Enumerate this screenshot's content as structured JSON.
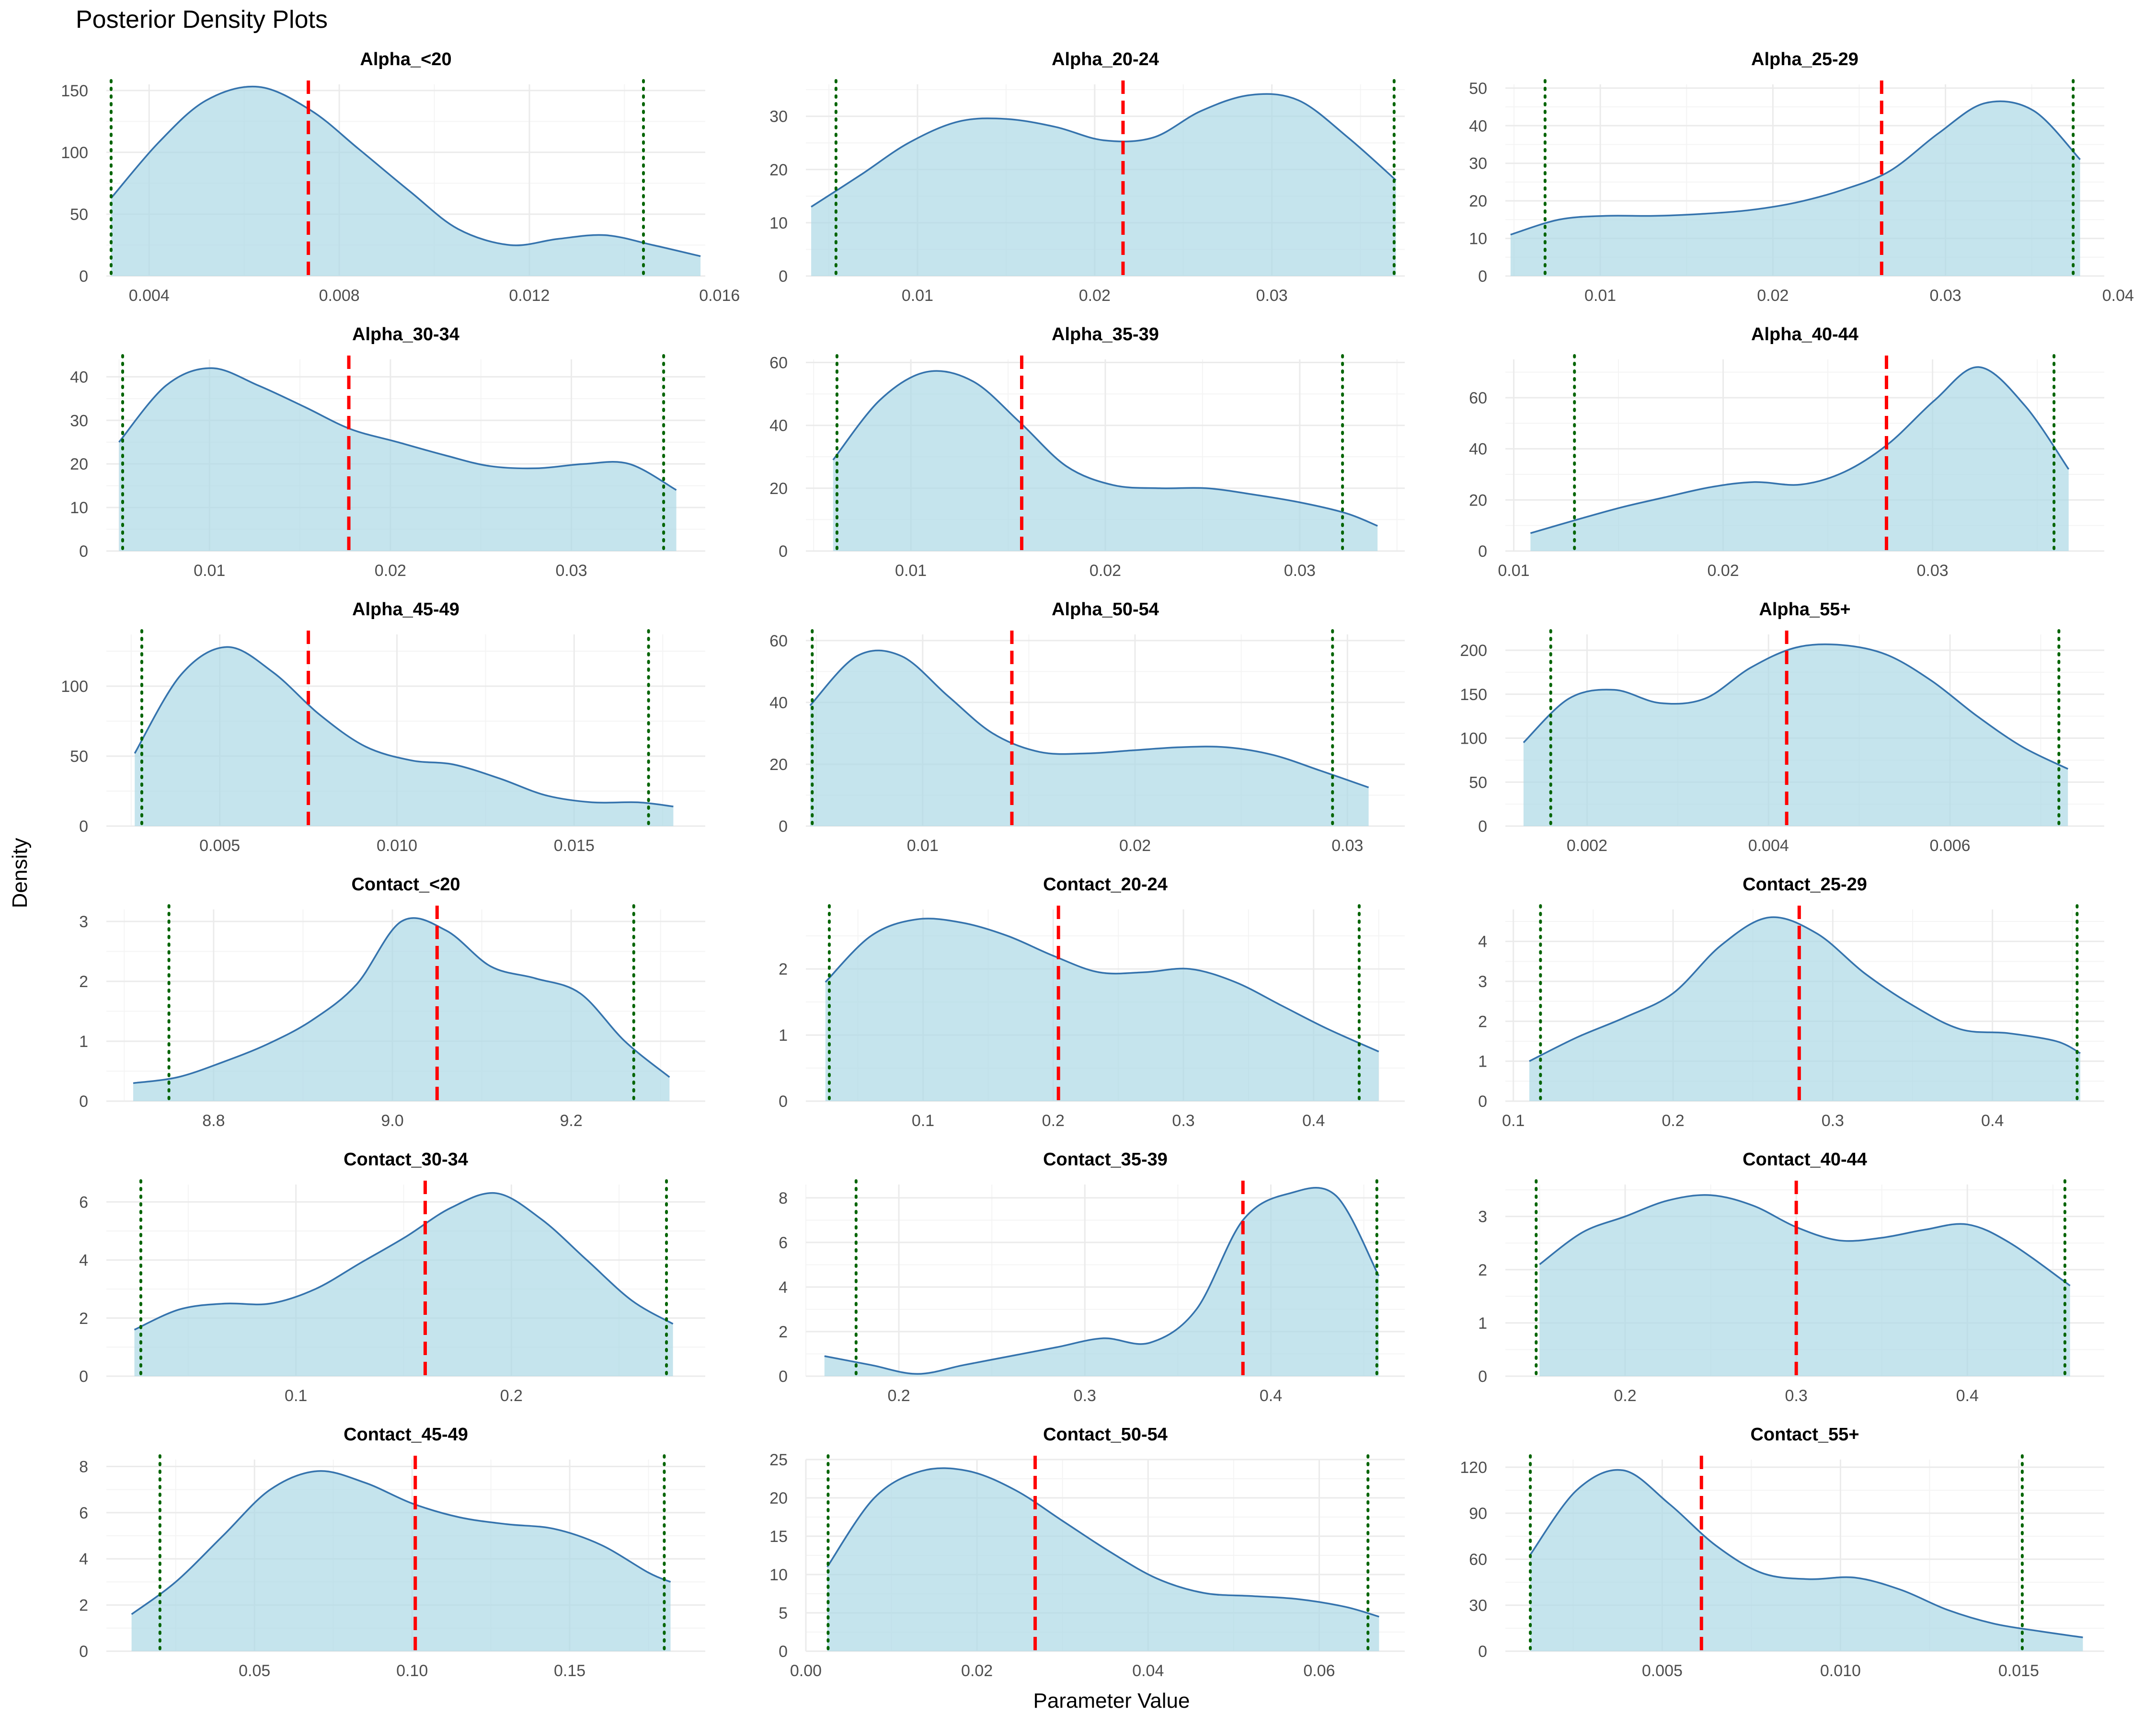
{
  "title": "Posterior Density Plots",
  "xlabel": "Parameter Value",
  "ylabel": "Density",
  "colors": {
    "fill": "#add8e6",
    "line": "#3573ad",
    "mean_line": "#ff0000",
    "ci_line": "#006400",
    "grid_major": "#ebebeb",
    "grid_minor": "#f4f4f4",
    "tick_text": "#4d4d4d"
  },
  "chart_data": [
    {
      "type": "area",
      "title": "Alpha_<20",
      "xlim": [
        0.0031,
        0.0157
      ],
      "ylim": [
        0,
        155
      ],
      "xticks": [
        0.004,
        0.008,
        0.012,
        0.016
      ],
      "xtick_labels": [
        "0.004",
        "0.008",
        "0.012",
        "0.016"
      ],
      "yticks": [
        0,
        50,
        100,
        150
      ],
      "ytick_labels": [
        "0",
        "50",
        "100",
        "150"
      ],
      "x": [
        0.0032,
        0.0042,
        0.0052,
        0.0063,
        0.0074,
        0.0084,
        0.0095,
        0.0105,
        0.0116,
        0.0126,
        0.0136,
        0.0146,
        0.0156
      ],
      "y": [
        63,
        108,
        142,
        153,
        134,
        103,
        68,
        38,
        25,
        30,
        33,
        25,
        16
      ],
      "mean": 0.00735,
      "ci": [
        0.0032,
        0.0144
      ]
    },
    {
      "type": "area",
      "title": "Alpha_20-24",
      "xlim": [
        0.0037,
        0.0375
      ],
      "ylim": [
        0,
        36
      ],
      "xticks": [
        0.01,
        0.02,
        0.03
      ],
      "xtick_labels": [
        "0.01",
        "0.02",
        "0.03"
      ],
      "yticks": [
        0,
        10,
        20,
        30
      ],
      "ytick_labels": [
        "0",
        "10",
        "20",
        "30"
      ],
      "x": [
        0.004,
        0.0068,
        0.0095,
        0.0123,
        0.015,
        0.0178,
        0.0205,
        0.0233,
        0.026,
        0.0288,
        0.0315,
        0.0343,
        0.037
      ],
      "y": [
        13,
        19,
        25,
        29,
        29.5,
        28,
        25.5,
        26,
        31,
        34,
        33,
        26,
        18
      ],
      "mean": 0.0216,
      "ci": [
        0.0054,
        0.0369
      ]
    },
    {
      "type": "area",
      "title": "Alpha_25-29",
      "xlim": [
        0.0045,
        0.0392
      ],
      "ylim": [
        0,
        51
      ],
      "xticks": [
        0.01,
        0.02,
        0.03,
        0.04
      ],
      "xtick_labels": [
        "0.01",
        "0.02",
        "0.03",
        "0.04"
      ],
      "yticks": [
        0,
        10,
        20,
        30,
        40,
        50
      ],
      "ytick_labels": [
        "0",
        "10",
        "20",
        "30",
        "40",
        "50"
      ],
      "x": [
        0.0048,
        0.0076,
        0.0103,
        0.0131,
        0.0158,
        0.0186,
        0.0213,
        0.0241,
        0.0268,
        0.0296,
        0.0323,
        0.0351,
        0.0378
      ],
      "y": [
        11,
        15,
        16,
        16,
        16.5,
        17.5,
        19.5,
        23,
        28,
        38,
        46,
        44,
        31
      ],
      "mean": 0.0263,
      "ci": [
        0.0068,
        0.0374
      ]
    },
    {
      "type": "area",
      "title": "Alpha_30-34",
      "xlim": [
        0.0043,
        0.0374
      ],
      "ylim": [
        0,
        44
      ],
      "xticks": [
        0.01,
        0.02,
        0.03
      ],
      "xtick_labels": [
        "0.01",
        "0.02",
        "0.03"
      ],
      "yticks": [
        0,
        10,
        20,
        30,
        40
      ],
      "ytick_labels": [
        "0",
        "10",
        "20",
        "30",
        "40"
      ],
      "x": [
        0.005,
        0.0076,
        0.0101,
        0.0127,
        0.0153,
        0.0178,
        0.0204,
        0.023,
        0.0255,
        0.0281,
        0.0307,
        0.0332,
        0.0358
      ],
      "y": [
        25,
        38,
        42,
        38,
        33,
        28,
        25,
        22,
        19.5,
        19,
        20,
        20,
        14
      ],
      "mean": 0.0177,
      "ci": [
        0.0052,
        0.0351
      ]
    },
    {
      "type": "area",
      "title": "Alpha_35-39",
      "xlim": [
        0.0046,
        0.0354
      ],
      "ylim": [
        0,
        61
      ],
      "xticks": [
        0.01,
        0.02,
        0.03
      ],
      "xtick_labels": [
        "0.01",
        "0.02",
        "0.03"
      ],
      "yticks": [
        0,
        20,
        40,
        60
      ],
      "ytick_labels": [
        "0",
        "20",
        "40",
        "60"
      ],
      "x": [
        0.006,
        0.0084,
        0.0108,
        0.0132,
        0.0156,
        0.018,
        0.0204,
        0.0228,
        0.0252,
        0.0276,
        0.03,
        0.0324,
        0.034
      ],
      "y": [
        29,
        48,
        57,
        54,
        41,
        27,
        21,
        20,
        20,
        18,
        15.5,
        12,
        8
      ],
      "mean": 0.0157,
      "ci": [
        0.0062,
        0.0322
      ]
    },
    {
      "type": "area",
      "title": "Alpha_40-44",
      "xlim": [
        0.0096,
        0.0382
      ],
      "ylim": [
        0,
        75
      ],
      "xticks": [
        0.01,
        0.02,
        0.03
      ],
      "xtick_labels": [
        "0.01",
        "0.02",
        "0.03"
      ],
      "yticks": [
        0,
        20,
        40,
        60
      ],
      "ytick_labels": [
        "0",
        "20",
        "40",
        "60"
      ],
      "x": [
        0.0108,
        0.0129,
        0.0151,
        0.0172,
        0.0194,
        0.0215,
        0.0237,
        0.0258,
        0.0279,
        0.0301,
        0.0322,
        0.0344,
        0.0365
      ],
      "y": [
        7,
        12,
        17,
        21,
        25,
        27,
        26,
        31,
        42,
        59,
        72,
        57,
        32
      ],
      "mean": 0.0278,
      "ci": [
        0.0129,
        0.0358
      ]
    },
    {
      "type": "area",
      "title": "Alpha_45-49",
      "xlim": [
        0.0018,
        0.0187
      ],
      "ylim": [
        0,
        137
      ],
      "xticks": [
        0.005,
        0.01,
        0.015
      ],
      "xtick_labels": [
        "0.005",
        "0.010",
        "0.015"
      ],
      "yticks": [
        0,
        50,
        100
      ],
      "ytick_labels": [
        "0",
        "50",
        "100"
      ],
      "x": [
        0.0026,
        0.0039,
        0.0052,
        0.0065,
        0.0078,
        0.0091,
        0.0104,
        0.0116,
        0.0129,
        0.0142,
        0.0155,
        0.0168,
        0.0178
      ],
      "y": [
        52,
        108,
        128,
        110,
        80,
        57,
        47,
        44,
        34,
        22,
        17,
        17,
        14
      ],
      "mean": 0.0075,
      "ci": [
        0.0028,
        0.0171
      ]
    },
    {
      "type": "area",
      "title": "Alpha_50-54",
      "xlim": [
        0.0045,
        0.0327
      ],
      "ylim": [
        0,
        62
      ],
      "xticks": [
        0.01,
        0.02,
        0.03
      ],
      "xtick_labels": [
        "0.01",
        "0.02",
        "0.03"
      ],
      "yticks": [
        0,
        20,
        40,
        60
      ],
      "ytick_labels": [
        "0",
        "20",
        "40",
        "60"
      ],
      "x": [
        0.0047,
        0.0069,
        0.009,
        0.0112,
        0.0133,
        0.0155,
        0.0177,
        0.0199,
        0.0221,
        0.0243,
        0.0265,
        0.0287,
        0.031
      ],
      "y": [
        39,
        55,
        55,
        42,
        30,
        24,
        23.5,
        24.5,
        25.5,
        25.5,
        23,
        18,
        12.5
      ],
      "mean": 0.0142,
      "ci": [
        0.0048,
        0.0293
      ]
    },
    {
      "type": "area",
      "title": "Alpha_55+",
      "xlim": [
        0.0011,
        0.0077
      ],
      "ylim": [
        0,
        218
      ],
      "xticks": [
        0.002,
        0.004,
        0.006
      ],
      "xtick_labels": [
        "0.002",
        "0.004",
        "0.006"
      ],
      "yticks": [
        0,
        50,
        100,
        150,
        200
      ],
      "ytick_labels": [
        "0",
        "50",
        "100",
        "150",
        "200"
      ],
      "x": [
        0.0013,
        0.0018,
        0.0023,
        0.0028,
        0.0033,
        0.0038,
        0.0043,
        0.0048,
        0.0053,
        0.0058,
        0.0063,
        0.0068,
        0.0073
      ],
      "y": [
        95,
        145,
        155,
        140,
        145,
        180,
        203,
        206,
        195,
        165,
        125,
        90,
        65
      ],
      "mean": 0.0042,
      "ci": [
        0.0016,
        0.0072
      ]
    },
    {
      "type": "area",
      "title": "Contact_<20",
      "xlim": [
        8.68,
        9.35
      ],
      "ylim": [
        0,
        3.2
      ],
      "xticks": [
        8.8,
        9.0,
        9.2
      ],
      "xtick_labels": [
        "8.8",
        "9.0",
        "9.2"
      ],
      "yticks": [
        0,
        1,
        2,
        3
      ],
      "ytick_labels": [
        "0",
        "1",
        "2",
        "3"
      ],
      "x": [
        8.71,
        8.76,
        8.81,
        8.86,
        8.91,
        8.96,
        9.01,
        9.06,
        9.11,
        9.16,
        9.21,
        9.26,
        9.31
      ],
      "y": [
        0.3,
        0.4,
        0.65,
        0.95,
        1.35,
        1.95,
        3.0,
        2.85,
        2.25,
        2.05,
        1.8,
        1.0,
        0.4
      ],
      "mean": 9.05,
      "ci": [
        8.75,
        9.27
      ]
    },
    {
      "type": "area",
      "title": "Contact_20-24",
      "xlim": [
        0.01,
        0.47
      ],
      "ylim": [
        0,
        2.9
      ],
      "xticks": [
        0.1,
        0.2,
        0.3,
        0.4
      ],
      "xtick_labels": [
        "0.1",
        "0.2",
        "0.3",
        "0.4"
      ],
      "yticks": [
        0,
        1,
        2
      ],
      "ytick_labels": [
        "0",
        "1",
        "2"
      ],
      "x": [
        0.025,
        0.06,
        0.095,
        0.13,
        0.165,
        0.2,
        0.235,
        0.27,
        0.305,
        0.34,
        0.375,
        0.41,
        0.45
      ],
      "y": [
        1.8,
        2.5,
        2.75,
        2.7,
        2.5,
        2.2,
        1.95,
        1.95,
        2.0,
        1.8,
        1.45,
        1.1,
        0.75
      ],
      "mean": 0.204,
      "ci": [
        0.028,
        0.435
      ]
    },
    {
      "type": "area",
      "title": "Contact_25-29",
      "xlim": [
        0.095,
        0.47
      ],
      "ylim": [
        0,
        4.8
      ],
      "xticks": [
        0.1,
        0.2,
        0.3,
        0.4
      ],
      "xtick_labels": [
        "0.1",
        "0.2",
        "0.3",
        "0.4"
      ],
      "yticks": [
        0,
        1,
        2,
        3,
        4
      ],
      "ytick_labels": [
        "0",
        "1",
        "2",
        "3",
        "4"
      ],
      "x": [
        0.11,
        0.14,
        0.17,
        0.2,
        0.23,
        0.26,
        0.29,
        0.32,
        0.35,
        0.38,
        0.41,
        0.44,
        0.455
      ],
      "y": [
        1.0,
        1.6,
        2.1,
        2.7,
        3.9,
        4.6,
        4.2,
        3.2,
        2.4,
        1.8,
        1.7,
        1.5,
        1.2
      ],
      "mean": 0.279,
      "ci": [
        0.117,
        0.453
      ]
    },
    {
      "type": "area",
      "title": "Contact_30-34",
      "xlim": [
        0.012,
        0.29
      ],
      "ylim": [
        0,
        6.6
      ],
      "xticks": [
        0.1,
        0.2
      ],
      "xtick_labels": [
        "0.1",
        "0.2"
      ],
      "yticks": [
        0,
        2,
        4,
        6
      ],
      "ytick_labels": [
        "0",
        "2",
        "4",
        "6"
      ],
      "x": [
        0.025,
        0.046,
        0.067,
        0.088,
        0.109,
        0.13,
        0.151,
        0.172,
        0.193,
        0.214,
        0.235,
        0.256,
        0.275
      ],
      "y": [
        1.6,
        2.3,
        2.5,
        2.5,
        3.0,
        3.9,
        4.8,
        5.8,
        6.3,
        5.4,
        4.0,
        2.6,
        1.8
      ],
      "mean": 0.16,
      "ci": [
        0.028,
        0.272
      ]
    },
    {
      "type": "area",
      "title": "Contact_35-39",
      "xlim": [
        0.15,
        0.472
      ],
      "ylim": [
        0,
        8.6
      ],
      "xticks": [
        0.2,
        0.3,
        0.4
      ],
      "xtick_labels": [
        "0.2",
        "0.3",
        "0.4"
      ],
      "yticks": [
        0,
        2,
        4,
        6,
        8
      ],
      "ytick_labels": [
        "0",
        "2",
        "4",
        "6",
        "8"
      ],
      "x": [
        0.16,
        0.185,
        0.21,
        0.235,
        0.26,
        0.285,
        0.31,
        0.335,
        0.36,
        0.385,
        0.41,
        0.435,
        0.458
      ],
      "y": [
        0.9,
        0.5,
        0.1,
        0.5,
        0.9,
        1.3,
        1.7,
        1.5,
        3.0,
        7.0,
        8.2,
        8.1,
        4.5
      ],
      "mean": 0.385,
      "ci": [
        0.177,
        0.457
      ]
    },
    {
      "type": "area",
      "title": "Contact_40-44",
      "xlim": [
        0.13,
        0.48
      ],
      "ylim": [
        0,
        3.6
      ],
      "xticks": [
        0.2,
        0.3,
        0.4
      ],
      "xtick_labels": [
        "0.2",
        "0.3",
        "0.4"
      ],
      "yticks": [
        0,
        1,
        2,
        3
      ],
      "ytick_labels": [
        "0",
        "1",
        "2",
        "3"
      ],
      "x": [
        0.15,
        0.175,
        0.2,
        0.225,
        0.25,
        0.275,
        0.3,
        0.325,
        0.35,
        0.375,
        0.4,
        0.425,
        0.46
      ],
      "y": [
        2.1,
        2.7,
        3.0,
        3.3,
        3.4,
        3.2,
        2.8,
        2.55,
        2.6,
        2.75,
        2.85,
        2.5,
        1.7
      ],
      "mean": 0.3,
      "ci": [
        0.148,
        0.457
      ]
    },
    {
      "type": "area",
      "title": "Contact_45-49",
      "xlim": [
        0.003,
        0.193
      ],
      "ylim": [
        0,
        8.3
      ],
      "xticks": [
        0.05,
        0.1,
        0.15
      ],
      "xtick_labels": [
        "0.05",
        "0.10",
        "0.15"
      ],
      "yticks": [
        0,
        2,
        4,
        6,
        8
      ],
      "ytick_labels": [
        "0",
        "2",
        "4",
        "6",
        "8"
      ],
      "x": [
        0.011,
        0.025,
        0.04,
        0.055,
        0.07,
        0.085,
        0.1,
        0.115,
        0.13,
        0.145,
        0.16,
        0.175,
        0.182
      ],
      "y": [
        1.6,
        3.0,
        5.0,
        7.0,
        7.8,
        7.3,
        6.4,
        5.8,
        5.5,
        5.3,
        4.6,
        3.4,
        3.0
      ],
      "mean": 0.101,
      "ci": [
        0.02,
        0.18
      ]
    },
    {
      "type": "area",
      "title": "Contact_50-54",
      "xlim": [
        0,
        0.07
      ],
      "ylim": [
        0,
        25
      ],
      "xticks": [
        0.0,
        0.02,
        0.04,
        0.06
      ],
      "xtick_labels": [
        "0.00",
        "0.02",
        "0.04",
        "0.06"
      ],
      "yticks": [
        0,
        5,
        10,
        15,
        20,
        25
      ],
      "ytick_labels": [
        "0",
        "5",
        "10",
        "15",
        "20",
        "25"
      ],
      "x": [
        0.0025,
        0.008,
        0.0135,
        0.019,
        0.0245,
        0.03,
        0.0355,
        0.041,
        0.0465,
        0.052,
        0.0575,
        0.063,
        0.067
      ],
      "y": [
        11,
        20,
        23.5,
        23.5,
        21,
        17,
        13,
        9.5,
        7.6,
        7.2,
        6.8,
        5.8,
        4.5
      ],
      "mean": 0.0268,
      "ci": [
        0.0026,
        0.0657
      ]
    },
    {
      "type": "area",
      "title": "Contact_55+",
      "xlim": [
        0.0006,
        0.0174
      ],
      "ylim": [
        0,
        125
      ],
      "xticks": [
        0.005,
        0.01,
        0.015
      ],
      "xtick_labels": [
        "0.005",
        "0.010",
        "0.015"
      ],
      "yticks": [
        0,
        30,
        60,
        90,
        120
      ],
      "ytick_labels": [
        "0",
        "30",
        "60",
        "90",
        "120"
      ],
      "x": [
        0.0013,
        0.0026,
        0.0039,
        0.0052,
        0.0065,
        0.0078,
        0.0091,
        0.0104,
        0.0117,
        0.013,
        0.0143,
        0.0156,
        0.0168
      ],
      "y": [
        63,
        105,
        118,
        96,
        69,
        51,
        47,
        48,
        40,
        27,
        18,
        13,
        9
      ],
      "mean": 0.0061,
      "ci": [
        0.0013,
        0.0151
      ]
    }
  ]
}
